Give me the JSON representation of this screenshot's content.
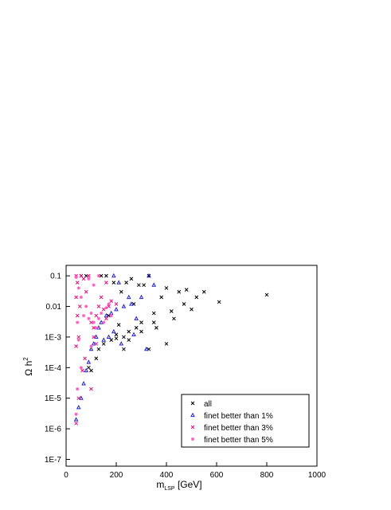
{
  "chart_data": {
    "type": "scatter",
    "x_label": [
      "m",
      "LSP",
      " [GeV]"
    ],
    "y_label": [
      "Ω h",
      "2"
    ],
    "xlim": [
      0,
      1000
    ],
    "xticks": [
      0,
      200,
      400,
      600,
      800,
      1000
    ],
    "ylim": [
      6e-08,
      0.22
    ],
    "yticks": [
      {
        "value": 1e-07,
        "label": "1E-7"
      },
      {
        "value": 1e-06,
        "label": "1E-6"
      },
      {
        "value": 1e-05,
        "label": "1E-5"
      },
      {
        "value": 0.0001,
        "label": "1E-4"
      },
      {
        "value": 0.001,
        "label": "1E-3"
      },
      0.01,
      0.1
    ],
    "log_y": true,
    "legend": "lower right",
    "series": [
      {
        "name": "all",
        "color": "#000000",
        "marker": "x",
        "x": [
          800,
          610,
          550,
          520,
          480,
          470,
          450,
          420,
          400,
          380,
          350,
          330,
          310,
          300,
          280,
          270,
          260,
          250,
          230,
          220,
          200,
          190,
          180,
          160,
          150,
          140,
          130,
          120,
          100,
          90,
          400,
          330,
          230,
          250,
          350,
          300,
          200,
          430,
          500,
          360,
          210,
          170,
          240,
          290,
          80,
          60
        ],
        "values": [
          0.024,
          0.014,
          0.03,
          0.02,
          0.035,
          0.012,
          0.03,
          0.007,
          0.04,
          0.02,
          0.006,
          0.1,
          0.05,
          0.003,
          0.002,
          0.012,
          0.08,
          0.0015,
          0.001,
          0.03,
          0.0009,
          0.06,
          0.0008,
          0.1,
          0.0006,
          0.1,
          0.0004,
          0.0002,
          8e-05,
          0.0001,
          0.0006,
          0.0004,
          0.0004,
          0.0008,
          0.003,
          0.0015,
          0.0012,
          0.004,
          0.008,
          0.002,
          0.0025,
          0.005,
          0.06,
          0.05,
          0.1,
          0.1
        ]
      },
      {
        "name": "finet better than 1%",
        "color": "#2222c8",
        "marker": "triangle",
        "x": [
          350,
          330,
          300,
          260,
          230,
          200,
          180,
          160,
          140,
          130,
          120,
          110,
          100,
          90,
          80,
          70,
          60,
          50,
          40,
          190,
          210,
          270,
          220,
          320,
          150,
          250,
          280,
          170,
          190
        ],
        "values": [
          0.05,
          0.1,
          0.02,
          0.012,
          0.01,
          0.008,
          0.006,
          0.005,
          0.003,
          0.002,
          0.001,
          0.0006,
          0.0004,
          0.00015,
          8e-05,
          3e-05,
          1e-05,
          5e-06,
          2e-06,
          0.1,
          0.06,
          0.0012,
          0.0006,
          0.0004,
          0.0008,
          0.02,
          0.004,
          0.001,
          0.0015
        ]
      },
      {
        "name": "finet better than 3%",
        "color": "#e8107a",
        "marker": "x",
        "x": [
          40,
          45,
          40,
          45,
          50,
          40,
          55,
          60,
          70,
          80,
          90,
          100,
          110,
          120,
          130,
          140,
          150,
          160,
          170,
          180,
          110,
          120,
          100,
          50,
          40,
          200,
          160,
          75,
          65
        ],
        "values": [
          0.1,
          0.06,
          0.02,
          0.005,
          0.001,
          0.0005,
          0.01,
          0.1,
          0.08,
          0.03,
          0.1,
          0.003,
          0.002,
          0.005,
          0.01,
          0.02,
          0.008,
          0.004,
          0.01,
          0.015,
          0.001,
          0.0006,
          2e-05,
          1e-05,
          1.5e-06,
          0.012,
          0.06,
          0.0002,
          8e-05
        ]
      },
      {
        "name": "finet better than 5%",
        "color": "#ff5cc0",
        "marker": "star",
        "x": [
          40,
          50,
          45,
          50,
          60,
          70,
          80,
          90,
          100,
          110,
          120,
          130,
          140,
          150,
          160,
          170,
          110,
          130,
          90,
          60,
          45,
          40,
          100,
          180
        ],
        "values": [
          0.09,
          0.04,
          0.003,
          0.0008,
          0.02,
          0.005,
          0.01,
          0.004,
          0.006,
          0.003,
          0.002,
          0.004,
          0.006,
          0.003,
          0.009,
          0.012,
          0.05,
          0.1,
          0.08,
          0.0001,
          2e-05,
          3e-06,
          0.0005,
          0.005
        ]
      }
    ]
  }
}
